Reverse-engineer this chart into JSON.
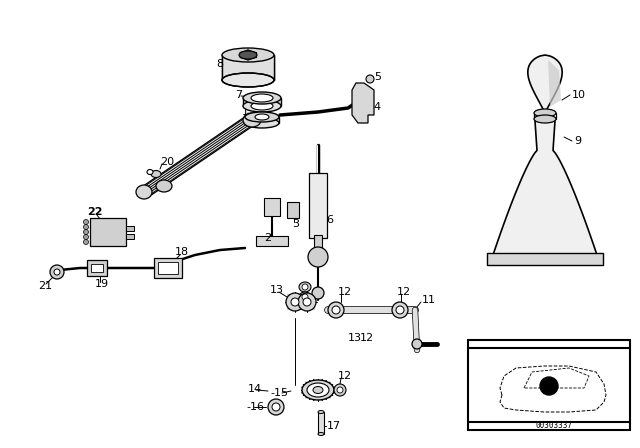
{
  "bg_color": "#ffffff",
  "diagram_id": "00303337",
  "fig_width": 6.4,
  "fig_height": 4.48,
  "dpi": 100,
  "lc": "#111111"
}
